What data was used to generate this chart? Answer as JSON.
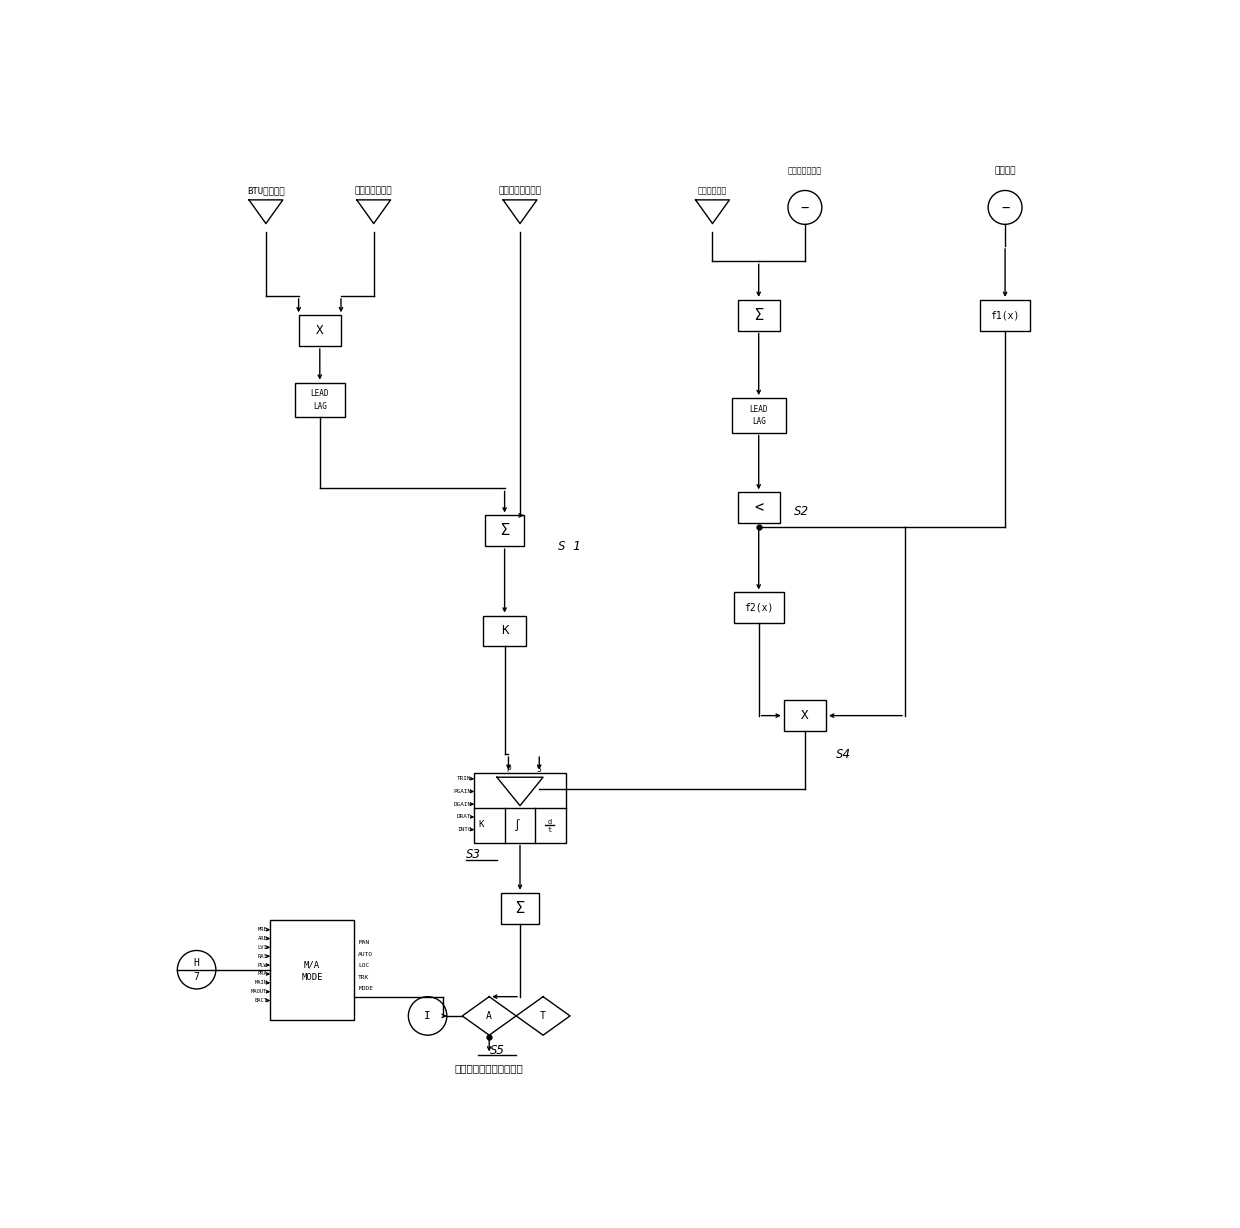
{
  "bg_color": "#ffffff",
  "line_color": "#000000",
  "fig_width": 12.4,
  "fig_height": 12.28,
  "labels": {
    "btu": "BTU修正系数",
    "corrected_coal": "修正后瞬时煤量",
    "oil_fuel": "燃油换算后燃料量",
    "boiler_main": "锅炉主控输出",
    "var_load": "变负荷加速指令",
    "unit_load": "机组负荷",
    "output_label": "磨煤机容量风门平均指令",
    "s1": "S 1",
    "s2": "S2",
    "s3": "S3",
    "s4": "S4",
    "s5": "S5",
    "ma_inputs": [
      "MRE",
      "ARE",
      "LVI",
      "RAI",
      "PLW",
      "PRA",
      "MAIN",
      "MAOUT",
      "BACT"
    ],
    "ma_outputs": [
      "MAN",
      "AUTO",
      "LOC",
      "TRK",
      "MODE"
    ],
    "pid_inputs": [
      "TRIN",
      "PGAIN",
      "DGAIN",
      "DRAT",
      "INTG"
    ]
  }
}
